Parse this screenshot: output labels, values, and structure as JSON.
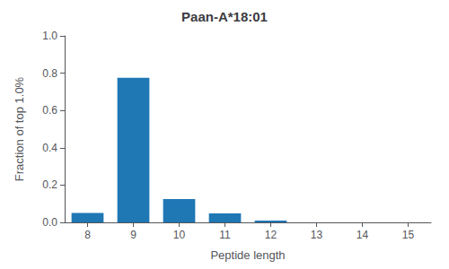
{
  "chart_data": {
    "type": "bar",
    "title": "Paan-A*18:01",
    "xlabel": "Peptide length",
    "ylabel": "Fraction of top 1.0%",
    "categories": [
      8,
      9,
      10,
      11,
      12,
      13,
      14,
      15
    ],
    "values": [
      0.05,
      0.775,
      0.125,
      0.048,
      0.01,
      0.0,
      0.0,
      0.0
    ],
    "color": "#1f77b4",
    "xlim": [
      7.5,
      15.5
    ],
    "xticks": [
      8,
      9,
      10,
      11,
      12,
      13,
      14,
      15
    ],
    "ylim": [
      0.0,
      1.0
    ],
    "yticks": [
      {
        "value": 0.0,
        "label": "0.0"
      },
      0.2,
      0.4,
      0.6,
      0.8,
      {
        "value": 1.0,
        "label": "1.0"
      }
    ],
    "grid": false
  }
}
